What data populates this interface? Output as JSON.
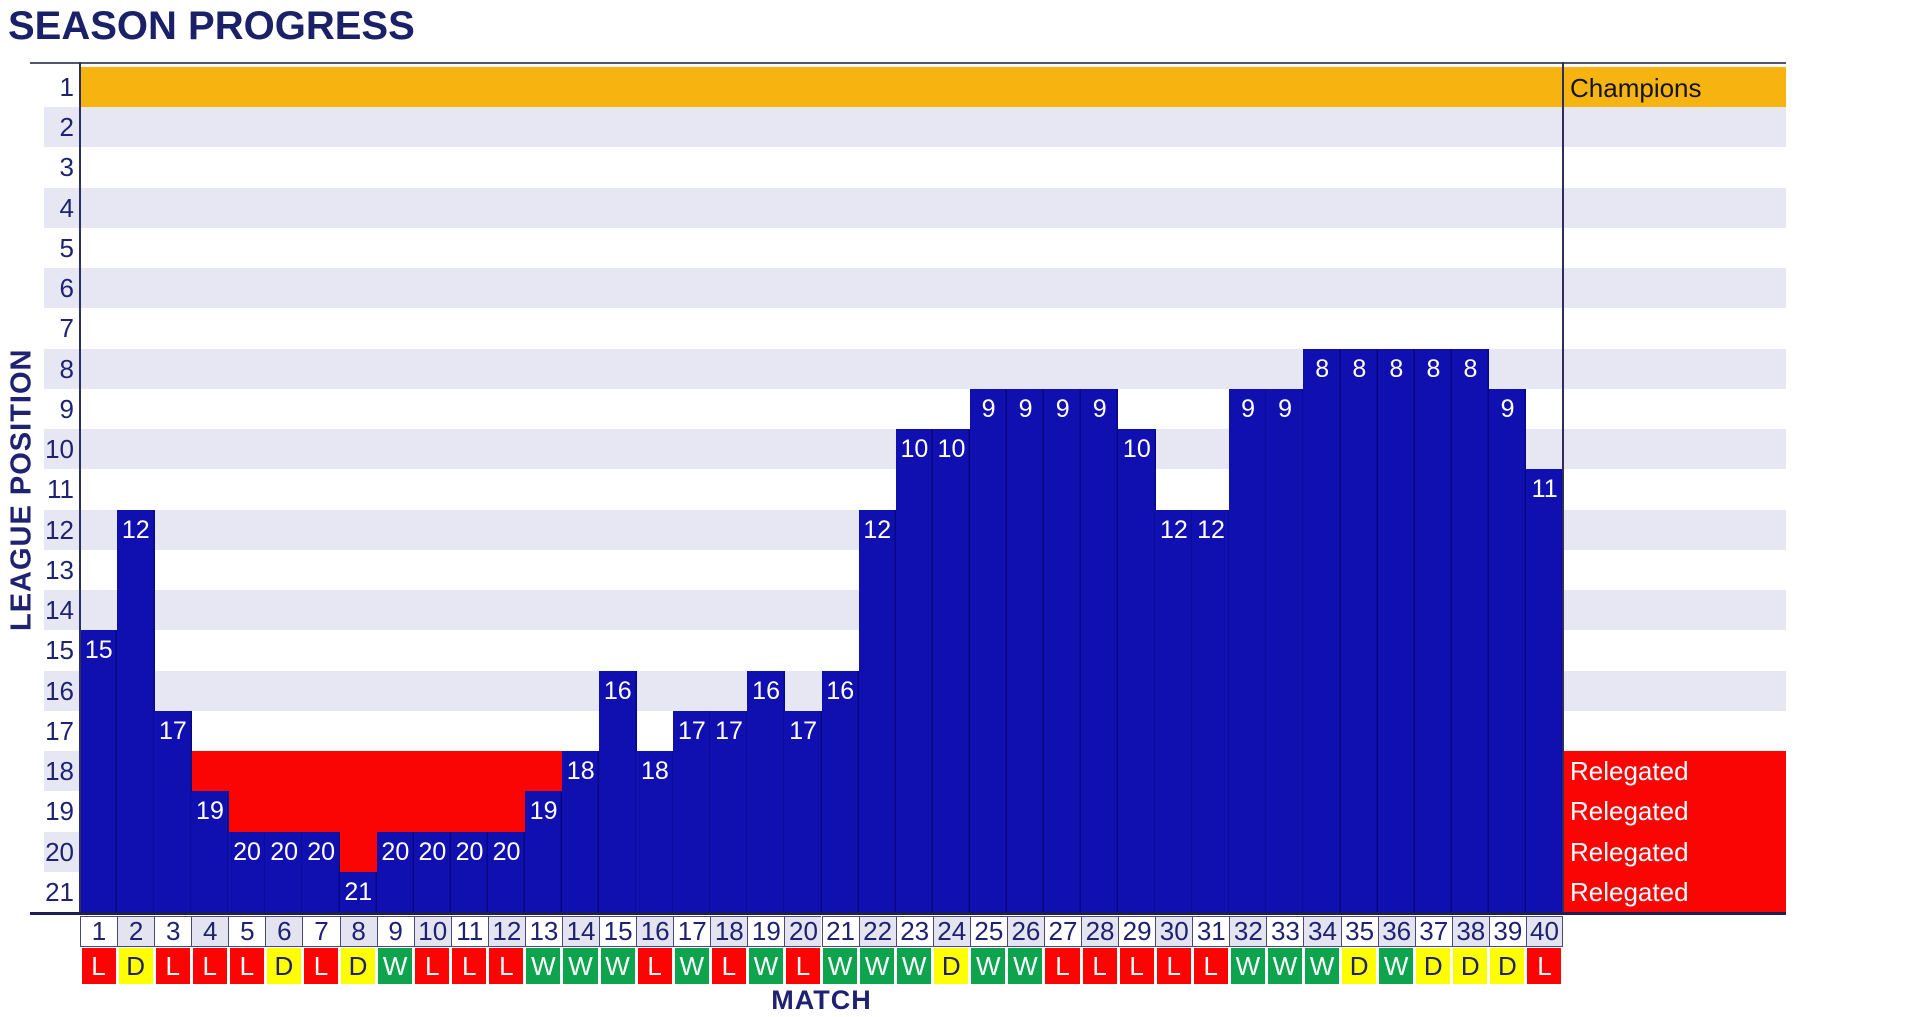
{
  "title": "SEASON PROGRESS",
  "y_axis": {
    "label": "LEAGUE POSITION"
  },
  "x_axis": {
    "label": "MATCH"
  },
  "bands": {
    "champions_label": "Champions",
    "relegated_label": "Relegated"
  },
  "colors": {
    "bar": "#1010B0",
    "bar_separator": "rgba(0,0,70,0.45)",
    "stripe": "#E7E7F3",
    "champions_band": "#F7B411",
    "relegated_band": "#FB0404",
    "win_bg": "#0DA44D",
    "draw_bg": "#FFFF00",
    "loss_bg": "#FB0404",
    "navy_text": "#1E2270",
    "value_label": "#FFFFFF",
    "relegated_text": "#FFFFFF",
    "axis_line": "#54546E",
    "bottom_line": "#1E1E55",
    "cell_border": "#4A4A78",
    "cell_alt_bg": "#E4E4F0",
    "cell_bg": "#FFFFFF"
  },
  "chart_data": {
    "type": "bar",
    "title": "SEASON PROGRESS",
    "xlabel": "MATCH",
    "ylabel": "LEAGUE POSITION",
    "x": [
      1,
      2,
      3,
      4,
      5,
      6,
      7,
      8,
      9,
      10,
      11,
      12,
      13,
      14,
      15,
      16,
      17,
      18,
      19,
      20,
      21,
      22,
      23,
      24,
      25,
      26,
      27,
      28,
      29,
      30,
      31,
      32,
      33,
      34,
      35,
      36,
      37,
      38,
      39,
      40
    ],
    "league_positions": [
      15,
      12,
      17,
      19,
      20,
      20,
      20,
      21,
      20,
      20,
      20,
      20,
      19,
      18,
      16,
      18,
      17,
      17,
      16,
      17,
      16,
      12,
      10,
      10,
      9,
      9,
      9,
      9,
      10,
      12,
      12,
      9,
      9,
      8,
      8,
      8,
      8,
      8,
      9,
      11
    ],
    "results": [
      "L",
      "D",
      "L",
      "L",
      "L",
      "D",
      "L",
      "D",
      "W",
      "L",
      "L",
      "L",
      "W",
      "W",
      "W",
      "L",
      "W",
      "L",
      "W",
      "L",
      "W",
      "W",
      "W",
      "D",
      "W",
      "W",
      "L",
      "L",
      "L",
      "L",
      "L",
      "W",
      "W",
      "W",
      "D",
      "W",
      "D",
      "D",
      "D",
      "L"
    ],
    "y_ticks": [
      1,
      2,
      3,
      4,
      5,
      6,
      7,
      8,
      9,
      10,
      11,
      12,
      13,
      14,
      15,
      16,
      17,
      18,
      19,
      20,
      21
    ],
    "ylim": [
      1,
      21
    ],
    "y_inverted": true,
    "grid": "horizontal-stripes",
    "legend_position": "right-bands",
    "zones": {
      "champions": {
        "label": "Champions",
        "rows": [
          1
        ]
      },
      "relegated": {
        "label": "Relegated",
        "rows": [
          18,
          19,
          20,
          21
        ]
      }
    },
    "result_colors": {
      "W": "#0DA44D",
      "D": "#FFFF00",
      "L": "#FB0404"
    },
    "result_text_colors": {
      "W": "#FFFFFF",
      "D": "#1E2270",
      "L": "#FFFFFF"
    }
  }
}
